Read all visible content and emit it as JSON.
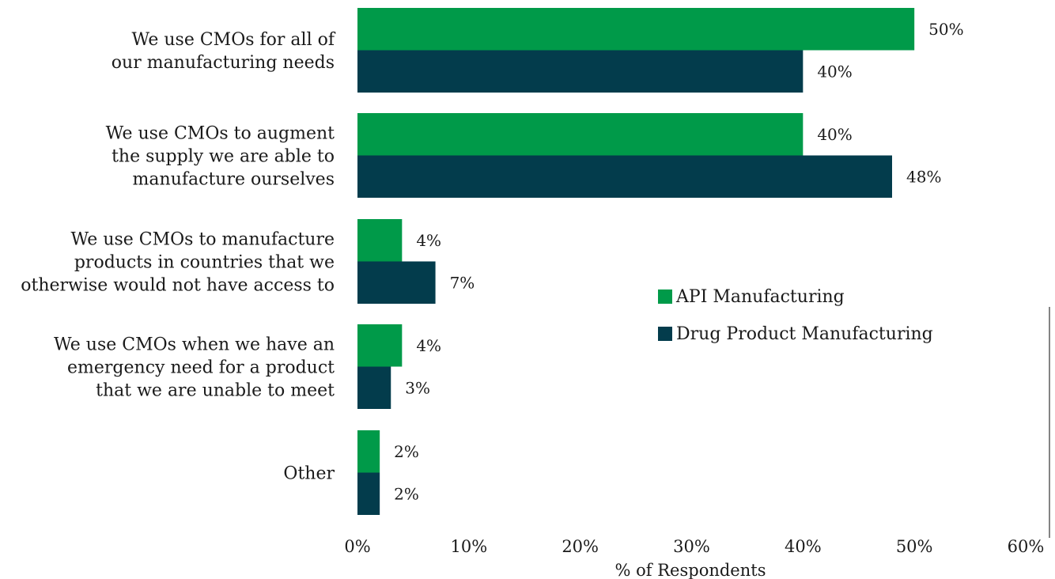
{
  "chart_data": {
    "type": "bar",
    "orientation": "horizontal",
    "categories": [
      [
        "We use CMOs for all of",
        "our manufacturing needs"
      ],
      [
        "We use CMOs to augment",
        "the supply we are able to",
        "manufacture ourselves"
      ],
      [
        "We use CMOs to manufacture",
        "products in countries that we",
        "otherwise would not have access to"
      ],
      [
        "We use CMOs when we have an",
        "emergency need for a product",
        "that we are unable to meet"
      ],
      [
        "Other"
      ]
    ],
    "series": [
      {
        "name": "API Manufacturing",
        "color": "#009a49",
        "values": [
          50,
          40,
          4,
          4,
          2
        ],
        "labels": [
          "50%",
          "40%",
          "4%",
          "4%",
          "2%"
        ]
      },
      {
        "name": "Drug Product Manufacturing",
        "color": "#033c4c",
        "values": [
          40,
          48,
          7,
          3,
          2
        ],
        "labels": [
          "40%",
          "48%",
          "7%",
          "3%",
          "2%"
        ]
      }
    ],
    "xlabel": "% of Respondents",
    "xlim": [
      0,
      60
    ],
    "xticks": [
      0,
      10,
      20,
      30,
      40,
      50,
      60
    ],
    "xtick_labels": [
      "0%",
      "10%",
      "20%",
      "30%",
      "40%",
      "50%",
      "60%"
    ],
    "grid": false,
    "legend_position": "center-right"
  }
}
